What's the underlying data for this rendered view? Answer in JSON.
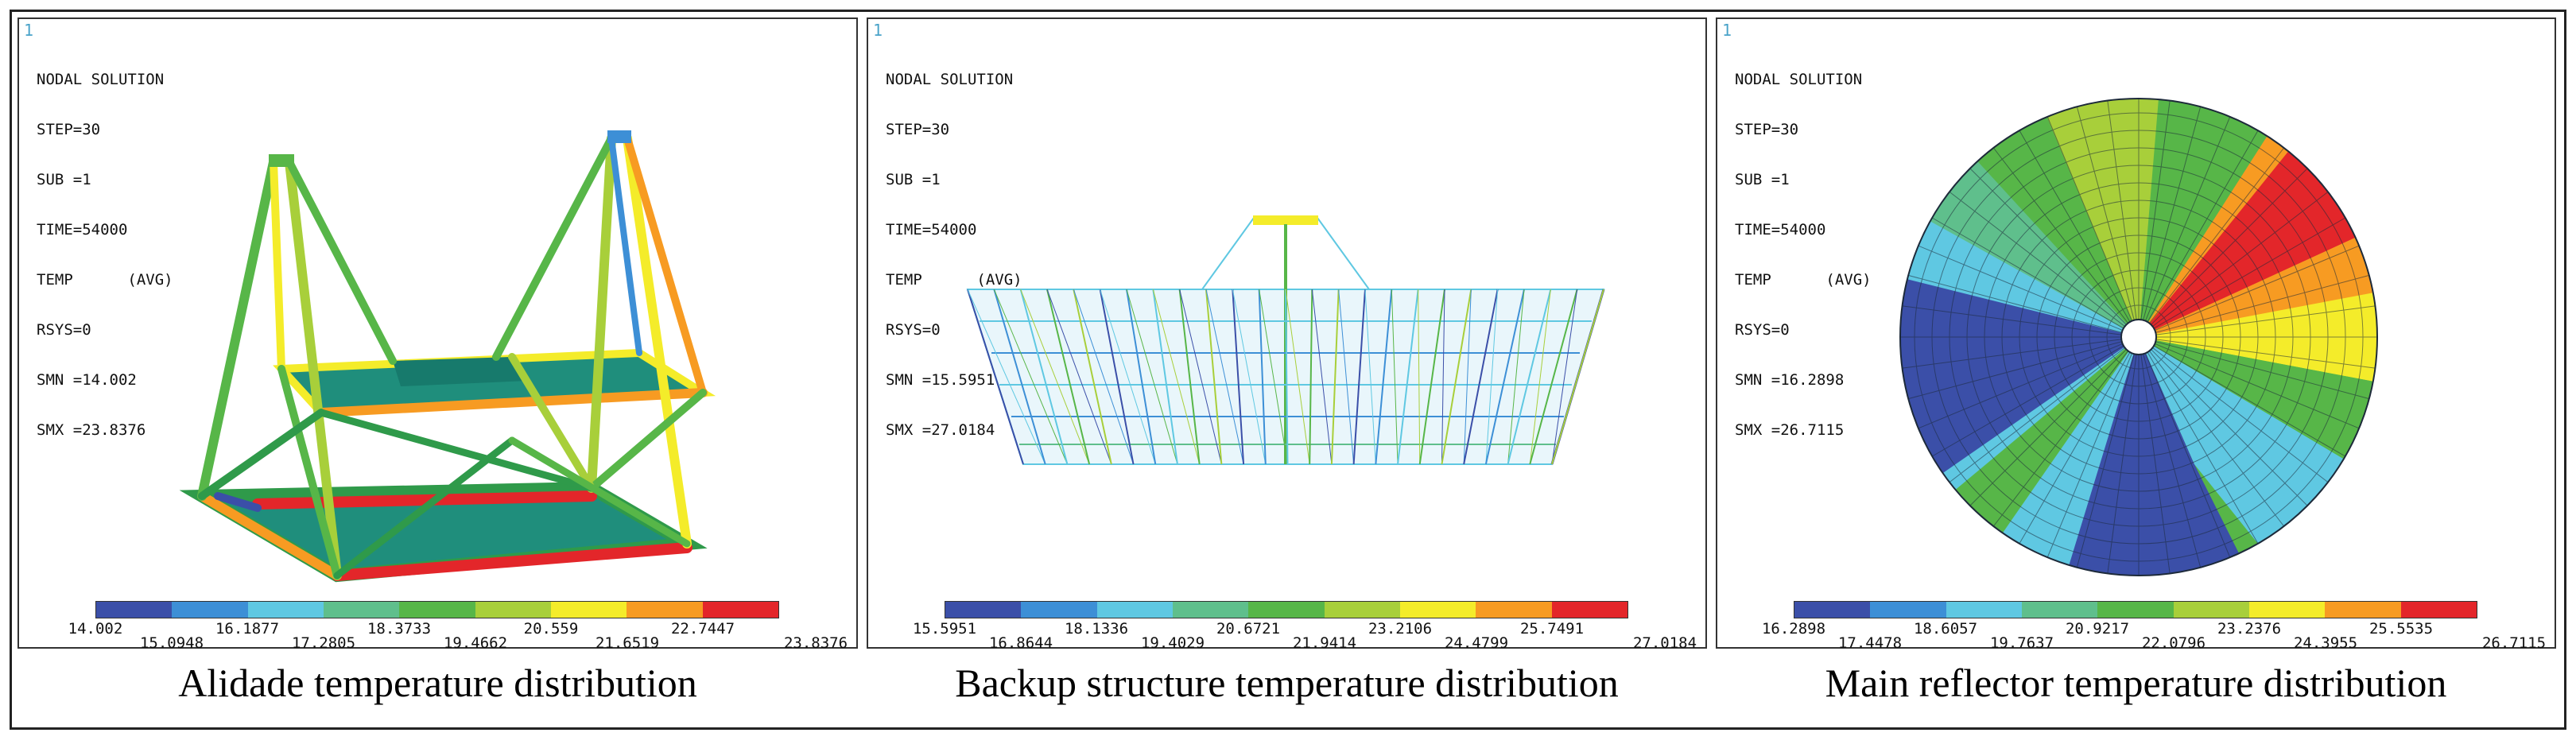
{
  "colors": {
    "scale": [
      "#3b4fa8",
      "#3d8fd6",
      "#5fc8e2",
      "#5fbf8c",
      "#57b648",
      "#a8cf3a",
      "#f4ec2a",
      "#f79b22",
      "#e3262a"
    ],
    "dark_blue": "#2e3f9a",
    "green": "#2f9a4a",
    "teal": "#1f8e7c",
    "red": "#e3262a"
  },
  "panels": [
    {
      "id": "alidade",
      "window_number": "1",
      "info_lines": [
        "NODAL SOLUTION",
        "",
        "STEP=30",
        "SUB =1",
        "TIME=54000",
        "TEMP      (AVG)",
        "RSYS=0",
        "SMN =14.002",
        "SMX =23.8376"
      ],
      "legend_top": [
        "14.002",
        "16.1877",
        "18.3733",
        "20.559",
        "22.7447"
      ],
      "legend_bottom": [
        "15.0948",
        "17.2805",
        "19.4662",
        "21.6519",
        "23.8376"
      ],
      "caption": "Alidade temperature distribution"
    },
    {
      "id": "backup-structure",
      "window_number": "1",
      "info_lines": [
        "NODAL SOLUTION",
        "",
        "STEP=30",
        "SUB =1",
        "TIME=54000",
        "TEMP      (AVG)",
        "RSYS=0",
        "SMN =15.5951",
        "SMX =27.0184"
      ],
      "legend_top": [
        "15.5951",
        "18.1336",
        "20.6721",
        "23.2106",
        "25.7491"
      ],
      "legend_bottom": [
        "16.8644",
        "19.4029",
        "21.9414",
        "24.4799",
        "27.0184"
      ],
      "caption": "Backup structure temperature distribution"
    },
    {
      "id": "main-reflector",
      "window_number": "1",
      "info_lines": [
        "NODAL SOLUTION",
        "",
        "STEP=30",
        "SUB =1",
        "TIME=54000",
        "TEMP      (AVG)",
        "RSYS=0",
        "SMN =16.2898",
        "SMX =26.7115"
      ],
      "legend_top": [
        "16.2898",
        "18.6057",
        "20.9217",
        "23.2376",
        "25.5535"
      ],
      "legend_bottom": [
        "17.4478",
        "19.7637",
        "22.0796",
        "24.3955",
        "26.7115"
      ],
      "caption": "Main reflector temperature distribution"
    }
  ]
}
